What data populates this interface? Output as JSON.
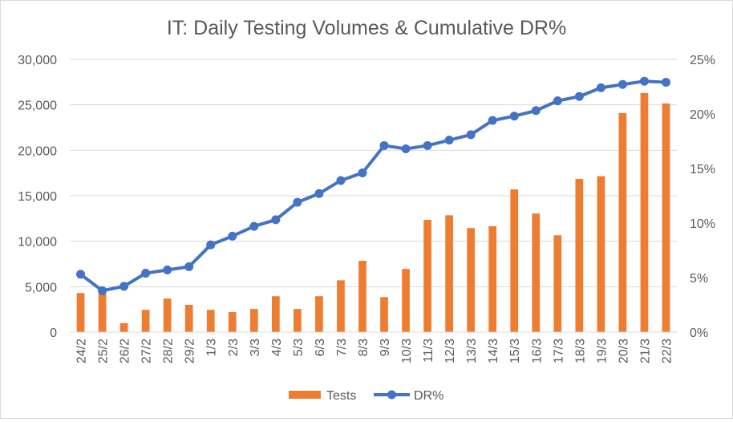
{
  "chart_data": {
    "type": "bar+line",
    "title": "IT: Daily Testing Volumes & Cumulative DR%",
    "categories": [
      "24/2",
      "25/2",
      "26/2",
      "27/2",
      "28/2",
      "29/2",
      "1/3",
      "2/3",
      "3/3",
      "4/3",
      "5/3",
      "6/3",
      "7/3",
      "8/3",
      "9/3",
      "10/3",
      "11/3",
      "12/3",
      "13/3",
      "14/3",
      "15/3",
      "16/3",
      "17/3",
      "18/3",
      "19/3",
      "20/3",
      "21/3",
      "22/3"
    ],
    "series": [
      {
        "name": "Tests",
        "type": "bar",
        "axis": "left",
        "color": "#ed7d31",
        "values": [
          4300,
          4400,
          1000,
          2450,
          3700,
          3000,
          2450,
          2200,
          2550,
          3950,
          2550,
          3950,
          5700,
          7850,
          3850,
          6950,
          12350,
          12850,
          11450,
          11650,
          15700,
          13050,
          10650,
          16850,
          17150,
          24100,
          26300,
          25150
        ]
      },
      {
        "name": "DR%",
        "type": "line",
        "axis": "right",
        "color": "#4472c4",
        "values": [
          5.3,
          3.8,
          4.2,
          5.4,
          5.7,
          6.0,
          8.0,
          8.8,
          9.7,
          10.3,
          11.9,
          12.7,
          13.9,
          14.6,
          17.1,
          16.8,
          17.1,
          17.6,
          18.1,
          19.4,
          19.8,
          20.3,
          21.2,
          21.6,
          22.4,
          22.7,
          23.0,
          22.9
        ]
      }
    ],
    "y_left": {
      "min": 0,
      "max": 30000,
      "ticks": [
        "0",
        "5,000",
        "10,000",
        "15,000",
        "20,000",
        "25,000",
        "30,000"
      ]
    },
    "y_right": {
      "min": 0,
      "max": 25,
      "ticks": [
        "0%",
        "5%",
        "10%",
        "15%",
        "20%",
        "25%"
      ]
    },
    "grid": true,
    "legend_position": "bottom",
    "legend": [
      "Tests",
      "DR%"
    ]
  }
}
